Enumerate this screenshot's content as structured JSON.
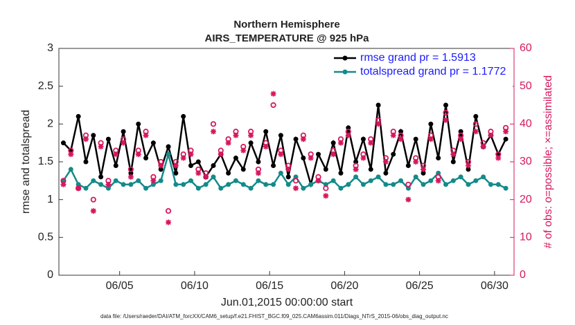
{
  "chart_data": {
    "type": "line",
    "title": "Northern Hemisphere",
    "subtitle": "AIRS_TEMPERATURE @ 925 hPa",
    "y_label": "rmse and totalspread",
    "y2_label": "# of obs: o=possible; ×=assimilated",
    "x_label": "Jun.01,2015 00:00:00 start",
    "footnote": "data file: /Users/raeder/DAI/ATM_forcXX/CAM6_setup/f.e21.FHIST_BGC.f09_025.CAM6assim.011/Diags_NTrS_2015-06/obs_diag_output.nc",
    "x": [
      1.25,
      1.75,
      2.25,
      2.75,
      3.25,
      3.75,
      4.25,
      4.75,
      5.25,
      5.75,
      6.25,
      6.75,
      7.25,
      7.75,
      8.25,
      8.75,
      9.25,
      9.75,
      10.25,
      10.75,
      11.25,
      11.75,
      12.25,
      12.75,
      13.25,
      13.75,
      14.25,
      14.75,
      15.25,
      15.75,
      16.25,
      16.75,
      17.25,
      17.75,
      18.25,
      18.75,
      19.25,
      19.75,
      20.25,
      20.75,
      21.25,
      21.75,
      22.25,
      22.75,
      23.25,
      23.75,
      24.25,
      24.75,
      25.25,
      25.75,
      26.25,
      26.75,
      27.25,
      27.75,
      28.25,
      28.75,
      29.25,
      29.75,
      30.25,
      30.75
    ],
    "series": [
      {
        "name": "rmse grand pr = 1.5913",
        "color": "#000000",
        "marker": "dot",
        "values": [
          1.75,
          1.65,
          2.1,
          1.5,
          1.85,
          1.3,
          1.8,
          1.45,
          1.9,
          1.35,
          2.0,
          1.55,
          1.75,
          1.4,
          1.7,
          1.35,
          2.1,
          1.45,
          1.5,
          1.3,
          1.45,
          1.6,
          1.35,
          1.55,
          1.4,
          1.75,
          1.5,
          1.9,
          1.45,
          1.85,
          1.3,
          1.8,
          1.55,
          1.2,
          1.6,
          1.4,
          1.75,
          1.35,
          1.95,
          1.5,
          1.8,
          1.4,
          2.25,
          1.35,
          1.6,
          1.9,
          1.45,
          1.8,
          1.35,
          2.0,
          1.55,
          2.25,
          1.5,
          1.9,
          1.4,
          2.1,
          1.7,
          1.85,
          1.6,
          1.8
        ]
      },
      {
        "name": "totalspread grand pr = 1.1772",
        "color": "#148a8a",
        "marker": "dot",
        "values": [
          1.25,
          1.4,
          1.2,
          1.15,
          1.25,
          1.2,
          1.15,
          1.25,
          1.2,
          1.2,
          1.25,
          1.15,
          1.2,
          1.25,
          1.6,
          1.2,
          1.2,
          1.25,
          1.15,
          1.2,
          1.3,
          1.15,
          1.2,
          1.25,
          1.2,
          1.15,
          1.25,
          1.2,
          1.2,
          1.35,
          1.2,
          1.3,
          1.15,
          1.2,
          1.25,
          1.2,
          1.25,
          1.15,
          1.2,
          1.3,
          1.2,
          1.25,
          1.3,
          1.2,
          1.2,
          1.25,
          1.15,
          1.3,
          1.2,
          1.25,
          1.35,
          1.2,
          1.25,
          1.3,
          1.2,
          1.25,
          1.3,
          1.2,
          1.2,
          1.15
        ]
      },
      {
        "color": "#d6175d",
        "axis": "y2",
        "marker": "circle",
        "values": [
          25,
          33,
          23,
          37,
          20,
          35,
          25,
          33,
          36,
          28,
          33,
          38,
          26,
          30,
          17,
          30,
          32,
          33,
          28,
          27,
          40,
          33,
          36,
          38,
          34,
          38,
          28,
          35,
          45,
          33,
          29,
          25,
          37,
          32,
          26,
          23,
          33,
          36,
          38,
          29,
          32,
          36,
          41,
          31,
          38,
          37,
          24,
          31,
          29,
          37,
          26,
          43,
          33,
          37,
          30,
          40,
          35,
          38,
          32,
          39
        ]
      },
      {
        "color": "#d6175d",
        "axis": "y2",
        "marker": "star",
        "values": [
          24,
          32,
          23,
          36,
          17,
          34,
          24,
          32,
          35,
          26,
          32,
          37,
          25,
          29,
          14,
          29,
          31,
          32,
          27,
          26,
          38,
          32,
          35,
          37,
          33,
          37,
          27,
          34,
          48,
          32,
          28,
          23,
          36,
          31,
          25,
          21,
          32,
          35,
          37,
          28,
          31,
          35,
          40,
          30,
          37,
          36,
          20,
          30,
          28,
          36,
          25,
          41,
          32,
          36,
          29,
          38,
          34,
          37,
          31,
          38
        ]
      }
    ],
    "xlim": [
      0.95,
      31.3
    ],
    "xticks": [
      {
        "value": 5,
        "label": "06/05"
      },
      {
        "value": 10,
        "label": "06/10"
      },
      {
        "value": 15,
        "label": "06/15"
      },
      {
        "value": 20,
        "label": "06/20"
      },
      {
        "value": 25,
        "label": "06/25"
      },
      {
        "value": 30,
        "label": "06/30"
      }
    ],
    "ylim": [
      0,
      3
    ],
    "yticks": [
      0,
      0.5,
      1,
      1.5,
      2,
      2.5,
      3
    ],
    "y2lim": [
      0,
      60
    ],
    "y2ticks": [
      0,
      10,
      20,
      30,
      40,
      50,
      60
    ],
    "y2color": "#d6175d",
    "legend": "upper right"
  }
}
